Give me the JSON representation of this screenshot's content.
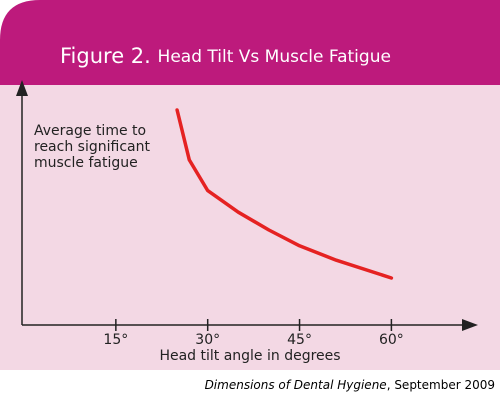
{
  "chart_data": {
    "type": "line",
    "figure_label": "Figure 2.",
    "title": "Head Tilt Vs Muscle Fatigue",
    "y_label_lines": [
      "Average time to",
      "reach significant",
      "muscle fatigue"
    ],
    "x_label": "Head tilt angle in degrees",
    "x": [
      25,
      27,
      30,
      35,
      40,
      45,
      51,
      60
    ],
    "values": [
      89.6,
      68.8,
      56,
      47,
      39.6,
      33,
      27,
      19.6
    ],
    "color": "#e52222",
    "xlim": [
      0,
      73
    ],
    "ylim": [
      0,
      100
    ],
    "xticks": [
      {
        "value": 15,
        "label": "15°"
      },
      {
        "value": 30,
        "label": "30°"
      },
      {
        "value": 45,
        "label": "45°"
      },
      {
        "value": 60,
        "label": "60°"
      }
    ],
    "source": {
      "publication": "Dimensions of Dental Hygiene",
      "date": ", September 2009"
    }
  }
}
